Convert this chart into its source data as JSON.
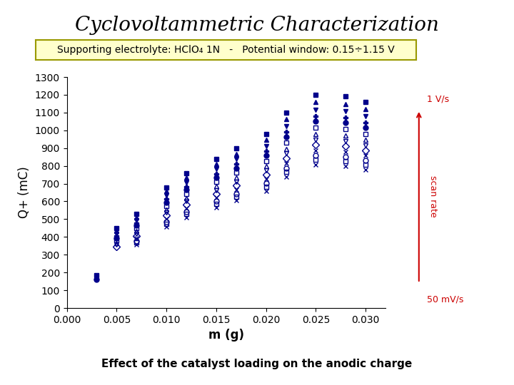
{
  "title": "Cyclovoltammetric Characterization",
  "subtitle": "Supporting electrolyte: HClO₄ 1N   -   Potential window: 0.15÷1.15 V",
  "xlabel": "m (g)",
  "ylabel": "Q+ (mC)",
  "caption": "Effect of the catalyst loading on the anodic charge",
  "background": "#ffffff",
  "plot_bg": "#ffffff",
  "subtitle_bg": "#ffffcc",
  "subtitle_border": "#999900",
  "color": "#00008B",
  "arrow_color": "#cc0000",
  "label_1V": "1 V/s",
  "label_50mV": "50 mV/s",
  "scan_rate_label": "scan rate",
  "xlim": [
    0.0,
    0.032
  ],
  "ylim": [
    0,
    1300
  ],
  "title_fontsize": 20,
  "subtitle_fontsize": 10,
  "axis_label_fontsize": 12,
  "caption_fontsize": 11,
  "x_vals": [
    0.003,
    0.005,
    0.007,
    0.01,
    0.012,
    0.015,
    0.017,
    0.02,
    0.022,
    0.025,
    0.028,
    0.03
  ],
  "base_q": [
    185,
    450,
    530,
    680,
    760,
    840,
    900,
    980,
    1100,
    1200,
    1190,
    1160
  ],
  "series_config": [
    [
      "s",
      true,
      1.0
    ],
    [
      "^",
      true,
      0.965
    ],
    [
      "v",
      true,
      0.93
    ],
    [
      "P",
      true,
      0.9
    ],
    [
      "o",
      true,
      0.875
    ],
    [
      "s",
      false,
      0.845
    ],
    [
      "^",
      false,
      0.815
    ],
    [
      "v",
      false,
      0.79
    ],
    [
      "D",
      false,
      0.765
    ],
    [
      "x",
      false,
      0.74
    ],
    [
      "o",
      false,
      0.715
    ],
    [
      "s",
      false,
      0.695
    ],
    [
      "x",
      false,
      0.672
    ]
  ],
  "skip_rules": {
    "5": [
      0.003
    ],
    "6": [
      0.003
    ],
    "7": [
      0.003
    ],
    "8": [
      0.003
    ],
    "9": [
      0.003,
      0.005
    ],
    "10": [
      0.003,
      0.005
    ],
    "11": [
      0.003,
      0.005
    ],
    "12": [
      0.003,
      0.005
    ]
  }
}
